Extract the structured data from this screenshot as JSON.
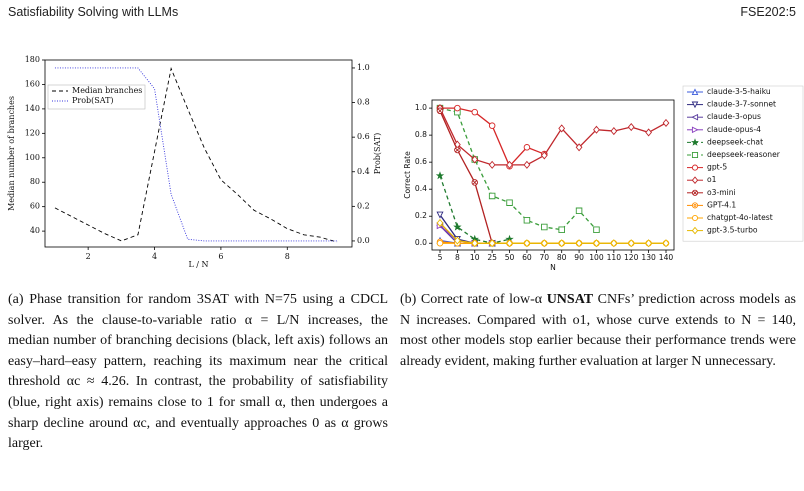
{
  "header": {
    "title": "Satisfiability Solving with LLMs",
    "venue": "FSE202:5"
  },
  "chart_data": [
    {
      "type": "line",
      "xlabel": "L / N",
      "ylabel": "Median number of branches",
      "y2label": "Prob(SAT)",
      "xlim": [
        0.7,
        9.95
      ],
      "xticks": [
        2,
        4,
        6,
        8
      ],
      "ylim": [
        27,
        180
      ],
      "yticks": [
        40,
        60,
        80,
        100,
        120,
        140,
        160,
        180
      ],
      "y2lim": [
        -0.035,
        1.046
      ],
      "y2ticks": [
        {
          "value": 0,
          "label": "0.0"
        },
        0.2,
        0.4,
        0.6,
        0.8,
        {
          "value": 1,
          "label": "1.0"
        }
      ],
      "legend": "upper left",
      "series": [
        {
          "name": "Median branches",
          "color": "#000000",
          "linestyle": "dashed",
          "x": [
            1,
            1.5,
            2,
            2.5,
            3,
            3.5,
            4,
            4.5,
            5,
            5.5,
            6,
            6.5,
            7,
            7.5,
            8,
            8.5,
            9,
            9.5
          ],
          "values": [
            59,
            52,
            45,
            38,
            32,
            37,
            105,
            173,
            140,
            108,
            82,
            70,
            57,
            50,
            42,
            37,
            35,
            31
          ]
        },
        {
          "name": "Prob(SAT)",
          "color": "#3333dd",
          "linestyle": "dotted",
          "axis": "y2",
          "x": [
            1,
            1.5,
            2,
            2.5,
            3,
            3.5,
            4,
            4.5,
            5,
            5.5,
            6,
            6.5,
            7,
            7.5,
            8,
            8.5,
            9,
            9.5
          ],
          "values": [
            1,
            1,
            1,
            1,
            1,
            1,
            0.88,
            0.27,
            0.01,
            0,
            0,
            0,
            0,
            0,
            0,
            0,
            0,
            0
          ]
        }
      ]
    },
    {
      "type": "line",
      "xlabel": "N",
      "ylabel": "Correct Rate",
      "categories": [
        5,
        8,
        10,
        25,
        50,
        60,
        70,
        80,
        90,
        100,
        110,
        120,
        130,
        140
      ],
      "ylim": [
        -0.05,
        1.06
      ],
      "yticks": [
        {
          "value": 0,
          "label": "0.0"
        },
        0.2,
        0.4,
        0.6,
        0.8,
        {
          "value": 1,
          "label": "1.0"
        }
      ],
      "legend": "outside right",
      "series": [
        {
          "name": "claude-3-5-haiku",
          "color": "#3b5bdb",
          "marker": "triangle-up",
          "values": [
            0.02,
            0,
            0,
            0,
            null,
            null,
            null,
            null,
            null,
            null,
            null,
            null,
            null,
            null
          ]
        },
        {
          "name": "claude-3-7-sonnet",
          "color": "#2f2a80",
          "marker": "triangle-down",
          "values": [
            0.21,
            0.03,
            0,
            0,
            null,
            null,
            null,
            null,
            null,
            null,
            null,
            null,
            null,
            null
          ]
        },
        {
          "name": "claude-3-opus",
          "color": "#5b3fa0",
          "marker": "triangle-left",
          "values": [
            0.13,
            0,
            0,
            0,
            null,
            null,
            null,
            null,
            null,
            null,
            null,
            null,
            null,
            null
          ]
        },
        {
          "name": "claude-opus-4",
          "color": "#8a3fbf",
          "marker": "triangle-right",
          "values": [
            0.13,
            0.02,
            0,
            0,
            null,
            null,
            null,
            null,
            null,
            null,
            null,
            null,
            null,
            null
          ]
        },
        {
          "name": "deepseek-chat",
          "color": "#1f7a2e",
          "marker": "star",
          "linestyle": "dashed",
          "values": [
            0.5,
            0.12,
            0.03,
            0,
            0.03,
            null,
            null,
            null,
            null,
            null,
            null,
            null,
            null,
            null
          ]
        },
        {
          "name": "deepseek-reasoner",
          "color": "#3a9d3a",
          "marker": "square",
          "linestyle": "dashed",
          "values": [
            1,
            0.97,
            0.62,
            0.35,
            0.3,
            0.17,
            0.12,
            0.1,
            0.24,
            0.1,
            null,
            null,
            null,
            null
          ]
        },
        {
          "name": "gpt-5",
          "color": "#d62728",
          "marker": "circle",
          "values": [
            1,
            1,
            0.97,
            0.87,
            0.57,
            0.71,
            0.66,
            null,
            null,
            null,
            null,
            null,
            null,
            null
          ]
        },
        {
          "name": "o1",
          "color": "#c0282d",
          "marker": "diamond",
          "values": [
            1,
            0.73,
            0.62,
            0.58,
            0.58,
            0.58,
            0.65,
            0.85,
            0.71,
            0.84,
            0.83,
            0.86,
            0.82,
            0.89
          ]
        },
        {
          "name": "o3-mini",
          "color": "#b22222",
          "marker": "circle-x",
          "values": [
            0.98,
            0.69,
            0.45,
            0,
            0,
            null,
            null,
            null,
            null,
            null,
            null,
            null,
            null,
            null
          ]
        },
        {
          "name": "GPT-4.1",
          "color": "#ff8c00",
          "marker": "circle-dot",
          "values": [
            0.01,
            0,
            0,
            0,
            0,
            0,
            0,
            0,
            0,
            0,
            null,
            null,
            null,
            null
          ]
        },
        {
          "name": "chatgpt-4o-latest",
          "color": "#ffa500",
          "marker": "circle",
          "values": [
            0,
            0,
            0,
            0,
            0,
            0,
            0,
            0,
            0,
            0,
            0,
            0,
            0,
            0
          ]
        },
        {
          "name": "gpt-3.5-turbo",
          "color": "#e6b800",
          "marker": "diamond",
          "values": [
            0.15,
            0.02,
            0,
            0,
            0,
            0,
            0,
            0,
            0,
            0,
            0,
            0,
            0,
            0
          ]
        }
      ]
    }
  ],
  "captions": {
    "a": "(a) Phase transition for random 3SAT with N=75 using a CDCL solver. As the clause-to-variable ratio α = L/N increases, the median number of branching decisions (black, left axis) follows an easy–hard–easy pattern, reaching its maximum near the critical threshold αc ≈ 4.26. In contrast, the probability of satisfiability (blue, right axis) remains close to 1 for small α, then undergoes a sharp decline around αc, and eventually approaches 0 as α grows larger.",
    "b": [
      "(b) Correct rate of low-α ",
      "UNSAT",
      " CNFs’ prediction across models as N increases. Compared with o1, whose curve extends to N = 140, most other models stop earlier because their performance trends were already evident, making further evaluation at larger N unnecessary."
    ]
  }
}
